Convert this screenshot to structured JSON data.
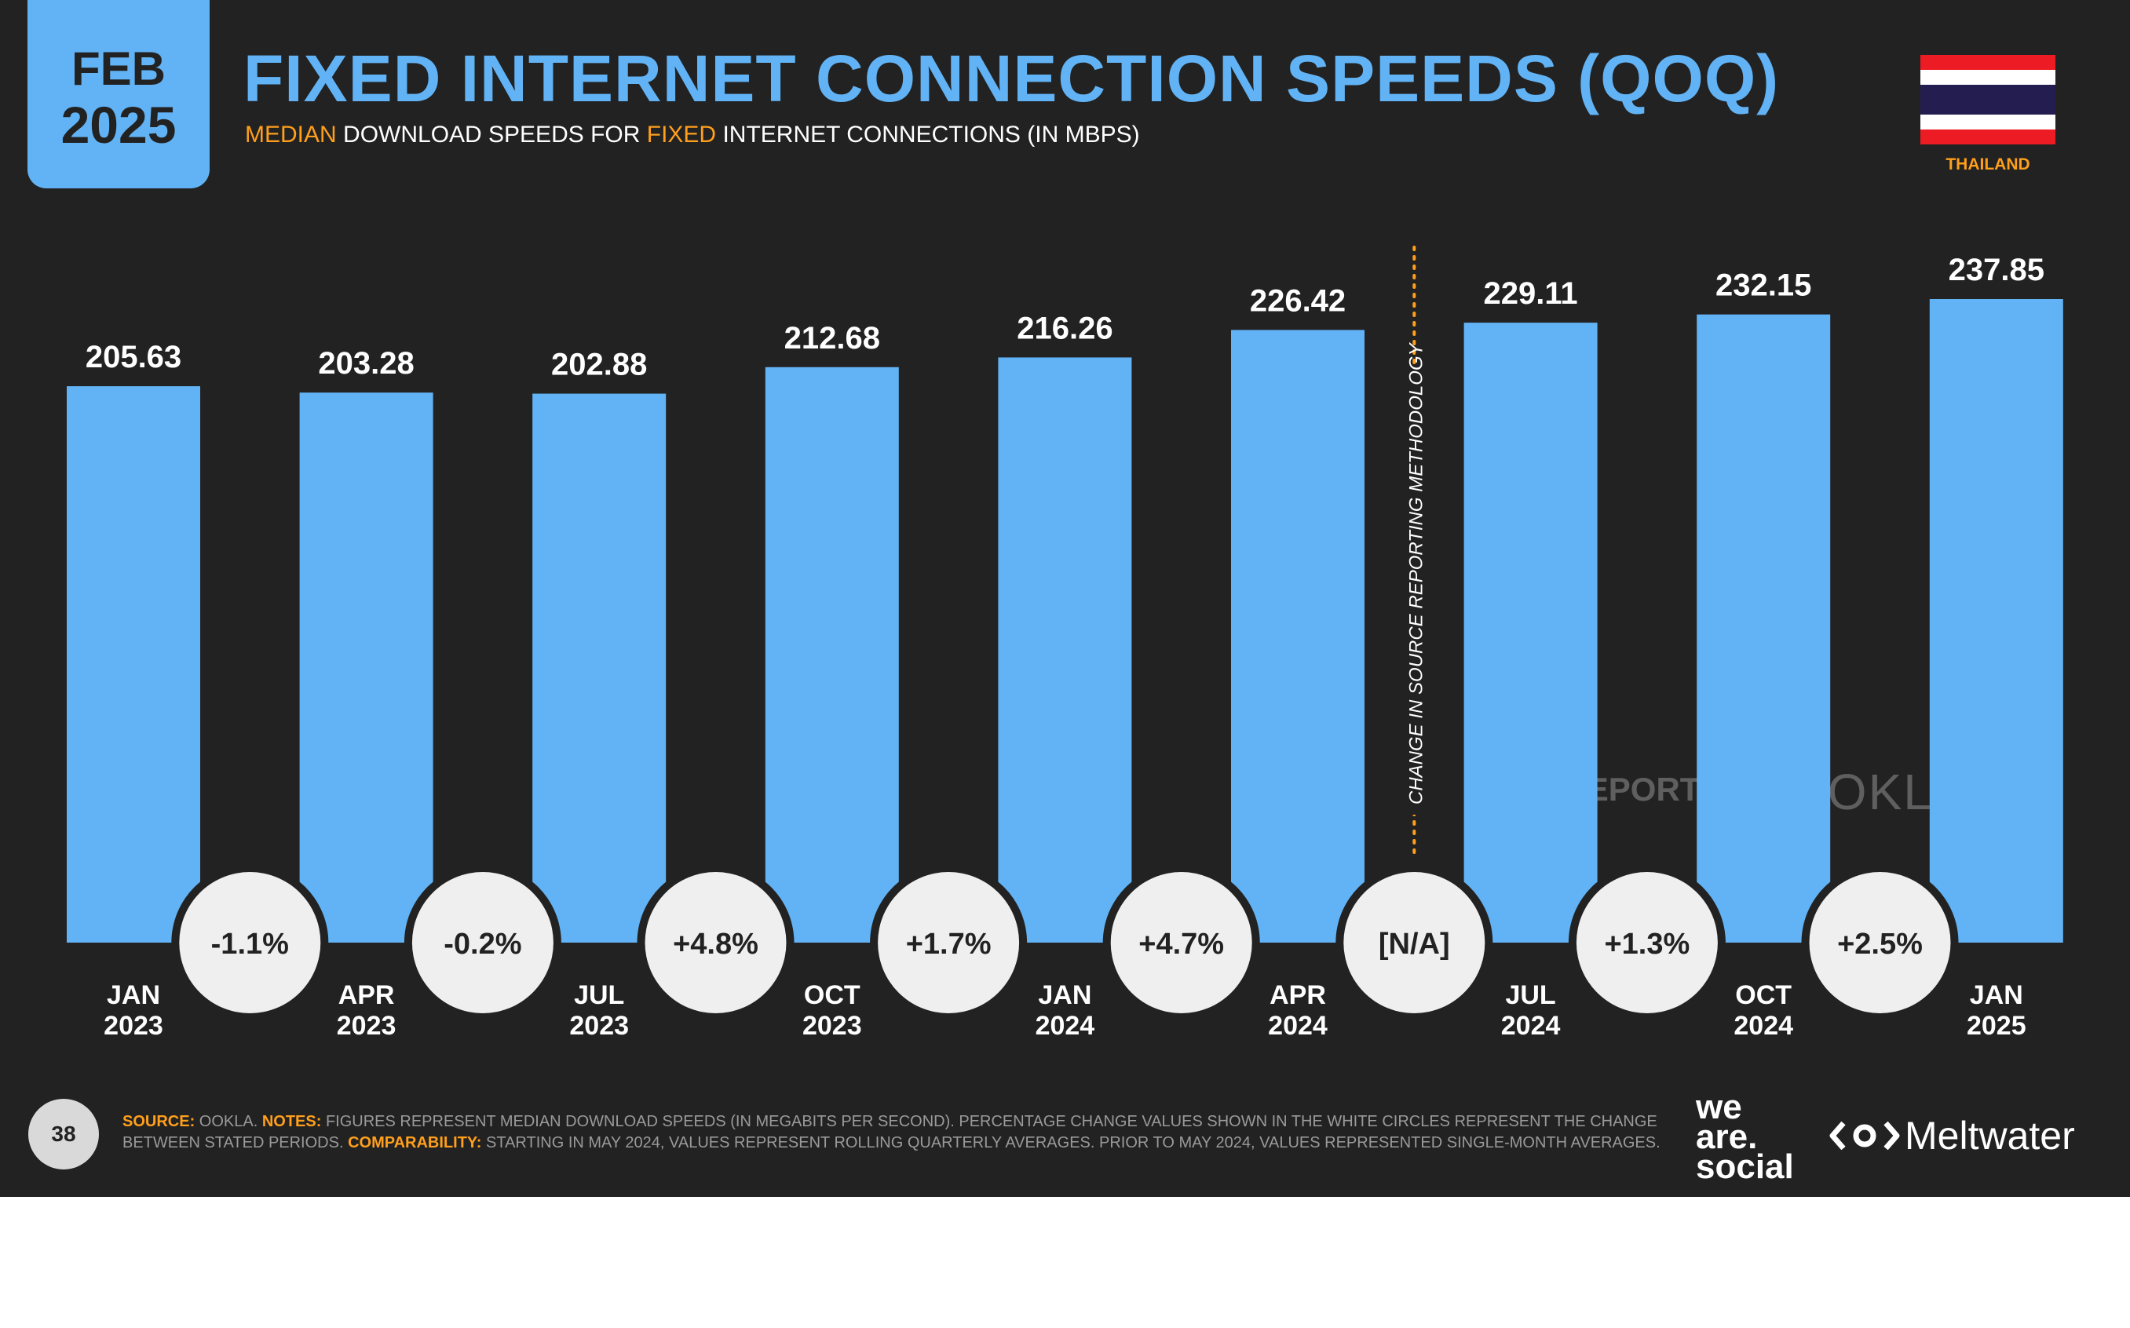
{
  "header": {
    "date_month": "FEB",
    "date_year": "2025",
    "title": "FIXED INTERNET CONNECTION SPEEDS (QOQ)",
    "subtitle_part1": "MEDIAN",
    "subtitle_part2": " DOWNLOAD SPEEDS FOR ",
    "subtitle_part3": "FIXED",
    "subtitle_part4": " INTERNET CONNECTIONS (IN MBPS)",
    "country": "THAILAND"
  },
  "colors": {
    "background": "#222222",
    "bar": "#62b3f5",
    "accent": "#ff9f1c",
    "circle": "#efefef",
    "flag_red": "#ed1c24",
    "flag_white": "#ffffff",
    "flag_blue": "#241d4f"
  },
  "chart_data": {
    "type": "bar",
    "title": "FIXED INTERNET CONNECTION SPEEDS (QOQ)",
    "subtitle": "MEDIAN DOWNLOAD SPEEDS FOR FIXED INTERNET CONNECTIONS (IN MBPS)",
    "categories": [
      [
        "JAN",
        "2023"
      ],
      [
        "APR",
        "2023"
      ],
      [
        "JUL",
        "2023"
      ],
      [
        "OCT",
        "2023"
      ],
      [
        "JAN",
        "2024"
      ],
      [
        "APR",
        "2024"
      ],
      [
        "JUL",
        "2024"
      ],
      [
        "OCT",
        "2024"
      ],
      [
        "JAN",
        "2025"
      ]
    ],
    "values": [
      205.63,
      203.28,
      202.88,
      212.68,
      216.26,
      226.42,
      229.11,
      232.15,
      237.85
    ],
    "value_labels": [
      "205.63",
      "203.28",
      "202.88",
      "212.68",
      "216.26",
      "226.42",
      "229.11",
      "232.15",
      "237.85"
    ],
    "changes": [
      "-1.1%",
      "-0.2%",
      "+4.8%",
      "+1.7%",
      "+4.7%",
      "[N/A]",
      "+1.3%",
      "+2.5%"
    ],
    "methodology_change_after_index": 5,
    "methodology_label": "CHANGE IN SOURCE REPORTING METHODOLOGY",
    "ylim": [
      0,
      237.85
    ],
    "grid": false,
    "legend": "none"
  },
  "footer": {
    "page_number": "38",
    "source_label": "SOURCE:",
    "source_text": " OOKLA. ",
    "notes_label": "NOTES:",
    "notes_text": " FIGURES REPRESENT MEDIAN DOWNLOAD SPEEDS (IN MEGABITS PER SECOND). PERCENTAGE CHANGE VALUES SHOWN IN THE WHITE CIRCLES REPRESENT THE CHANGE BETWEEN STATED PERIODS. ",
    "comparability_label": "COMPARABILITY:",
    "comparability_text": " STARTING IN MAY 2024, VALUES REPRESENT ROLLING QUARTERLY AVERAGES. PRIOR TO MAY 2024, VALUES REPRESENTED SINGLE-MONTH AVERAGES.",
    "logo_we": "we",
    "logo_are": "are.",
    "logo_social": "social",
    "logo_meltwater": "Meltwater",
    "watermark_datareportal": "DATAREPORTAL",
    "watermark_ookla": "OOKLA"
  }
}
